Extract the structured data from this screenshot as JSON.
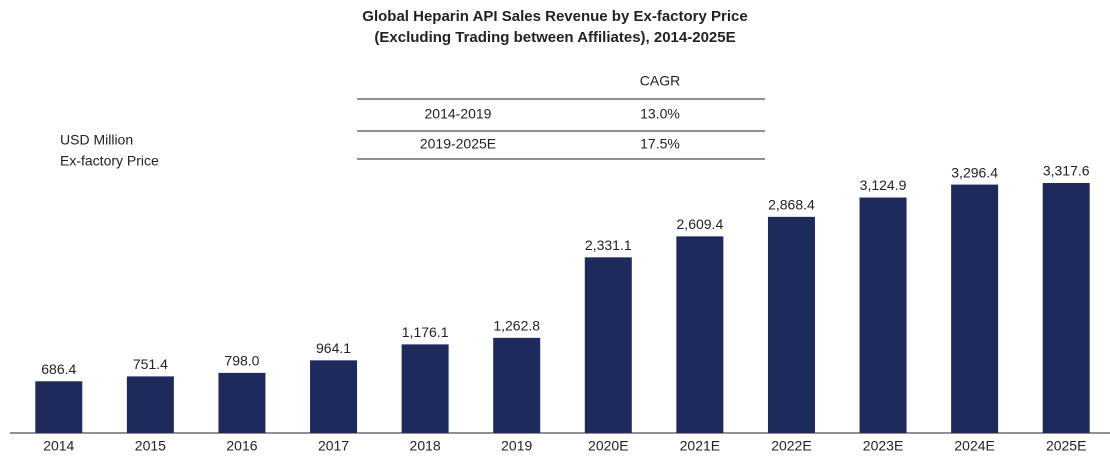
{
  "chart_data": {
    "type": "bar",
    "title": [
      "Global Heparin API Sales Revenue by Ex-factory Price",
      "(Excluding Trading between Affiliates), 2014-2025E"
    ],
    "ylabel": [
      "USD Million",
      "Ex-factory Price"
    ],
    "categories": [
      "2014",
      "2015",
      "2016",
      "2017",
      "2018",
      "2019",
      "2020E",
      "2021E",
      "2022E",
      "2023E",
      "2024E",
      "2025E"
    ],
    "values": [
      686.4,
      751.4,
      798.0,
      964.1,
      1176.1,
      1262.8,
      2331.1,
      2609.4,
      2868.4,
      3124.9,
      3296.4,
      3317.6
    ],
    "value_labels": [
      "686.4",
      "751.4",
      "798.0",
      "964.1",
      "1,176.1",
      "1,262.8",
      "2,331.1",
      "2,609.4",
      "2,868.4",
      "3,124.9",
      "3,296.4",
      "3,317.6"
    ],
    "color": "#1f2a5c",
    "cagr_table": {
      "header": "CAGR",
      "rows": [
        [
          "2014-2019",
          "13.0%"
        ],
        [
          "2019-2025E",
          "17.5%"
        ]
      ]
    }
  }
}
